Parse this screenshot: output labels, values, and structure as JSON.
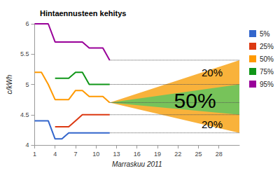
{
  "chart_data": {
    "type": "line",
    "title": "Hintaennusteen kehitys",
    "x_label": "Marraskuu 2011",
    "y_label": "c/kWh",
    "x": [
      1,
      2,
      3,
      4,
      5,
      6,
      7,
      8,
      9,
      10,
      11,
      12
    ],
    "series": [
      {
        "name": "5%",
        "color": "#3366cc",
        "values": [
          4.4,
          4.4,
          4.4,
          4.1,
          4.1,
          4.2,
          4.2,
          4.2,
          4.2,
          4.2,
          4.2,
          4.2
        ]
      },
      {
        "name": "25%",
        "color": "#dc3912",
        "values": [
          null,
          null,
          null,
          4.3,
          4.3,
          4.3,
          4.4,
          4.5,
          4.5,
          4.5,
          4.5,
          4.5
        ]
      },
      {
        "name": "50%",
        "color": "#ff9900",
        "values": [
          5.2,
          5.2,
          5.0,
          4.75,
          4.75,
          4.75,
          4.9,
          4.9,
          4.8,
          4.8,
          4.8,
          4.7
        ]
      },
      {
        "name": "75%",
        "color": "#109618",
        "values": [
          null,
          null,
          null,
          5.1,
          5.1,
          5.1,
          5.2,
          5.2,
          5.0,
          5.0,
          5.0,
          5.0
        ]
      },
      {
        "name": "95%",
        "color": "#990099",
        "values": [
          6.0,
          6.0,
          6.0,
          5.7,
          5.7,
          5.7,
          5.7,
          5.7,
          5.6,
          5.6,
          5.6,
          5.4
        ]
      }
    ],
    "bands": [
      {
        "color": "#f9b23b",
        "x": [
          12,
          31
        ],
        "lower": [
          4.7,
          4.2
        ],
        "upper": [
          4.7,
          5.4
        ]
      },
      {
        "color": "#77c35a",
        "x": [
          12,
          31
        ],
        "lower": [
          4.7,
          4.5
        ],
        "upper": [
          4.7,
          5.0
        ]
      }
    ],
    "annotations": [
      {
        "text": "20%",
        "x": 27,
        "y": 5.2
      },
      {
        "text": "50%",
        "x": 24.5,
        "y": 4.73
      },
      {
        "text": "20%",
        "x": 27,
        "y": 4.34
      }
    ],
    "xlim": [
      1,
      31
    ],
    "xticks": [
      1,
      4,
      7,
      10,
      13,
      16,
      19,
      22,
      25,
      28
    ],
    "ylim": [
      4,
      6
    ],
    "yticks": [
      4,
      4.5,
      5,
      5.5,
      6
    ],
    "grid": false,
    "legend": "right"
  }
}
